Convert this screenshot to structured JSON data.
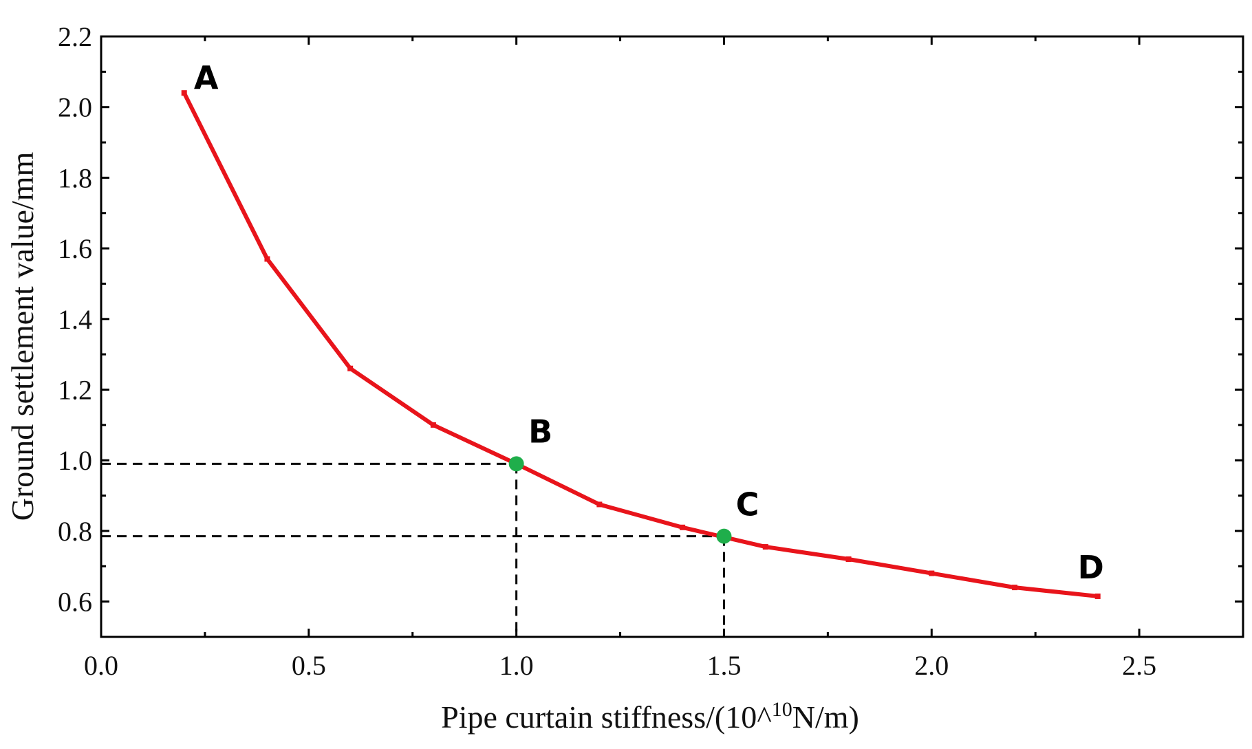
{
  "chart_data": {
    "type": "line",
    "title": "",
    "xlabel": "Pipe curtain stiffness/(10^",
    "xlabel_sup": "10",
    "xlabel_tail": "N/m)",
    "ylabel": "Ground settlement value/mm",
    "xlim": [
      0,
      2.75
    ],
    "ylim": [
      0.5,
      2.2
    ],
    "xticks": [
      0.0,
      0.5,
      1.0,
      1.5,
      2.0,
      2.5
    ],
    "xtick_labels": [
      "0.0",
      "0.5",
      "1.0",
      "1.5",
      "2.0",
      "2.5"
    ],
    "yticks": [
      0.6,
      0.8,
      1.0,
      1.2,
      1.4,
      1.6,
      1.8,
      2.0,
      2.2
    ],
    "ytick_labels": [
      "0.6",
      "0.8",
      "1.0",
      "1.2",
      "1.4",
      "1.6",
      "1.8",
      "2.0",
      "2.2"
    ],
    "grid": false,
    "series": [
      {
        "name": "Ground settlement",
        "color": "#e8141b",
        "x": [
          0.2,
          0.4,
          0.6,
          0.8,
          1.0,
          1.2,
          1.4,
          1.6,
          1.8,
          2.0,
          2.2,
          2.4
        ],
        "y": [
          2.04,
          1.57,
          1.26,
          1.1,
          0.99,
          0.875,
          0.81,
          0.755,
          0.72,
          0.68,
          0.64,
          0.615
        ]
      }
    ],
    "highlight_points": [
      {
        "label": "B",
        "x": 1.0,
        "y": 0.99,
        "color": "#1fae4b"
      },
      {
        "label": "C",
        "x": 1.5,
        "y": 0.785,
        "color": "#1fae4b"
      }
    ],
    "annotations": [
      {
        "text": "A",
        "x": 0.2,
        "y": 2.04
      },
      {
        "text": "B",
        "x": 1.0,
        "y": 0.99
      },
      {
        "text": "C",
        "x": 1.5,
        "y": 0.785
      },
      {
        "text": "D",
        "x": 2.4,
        "y": 0.615
      }
    ]
  }
}
